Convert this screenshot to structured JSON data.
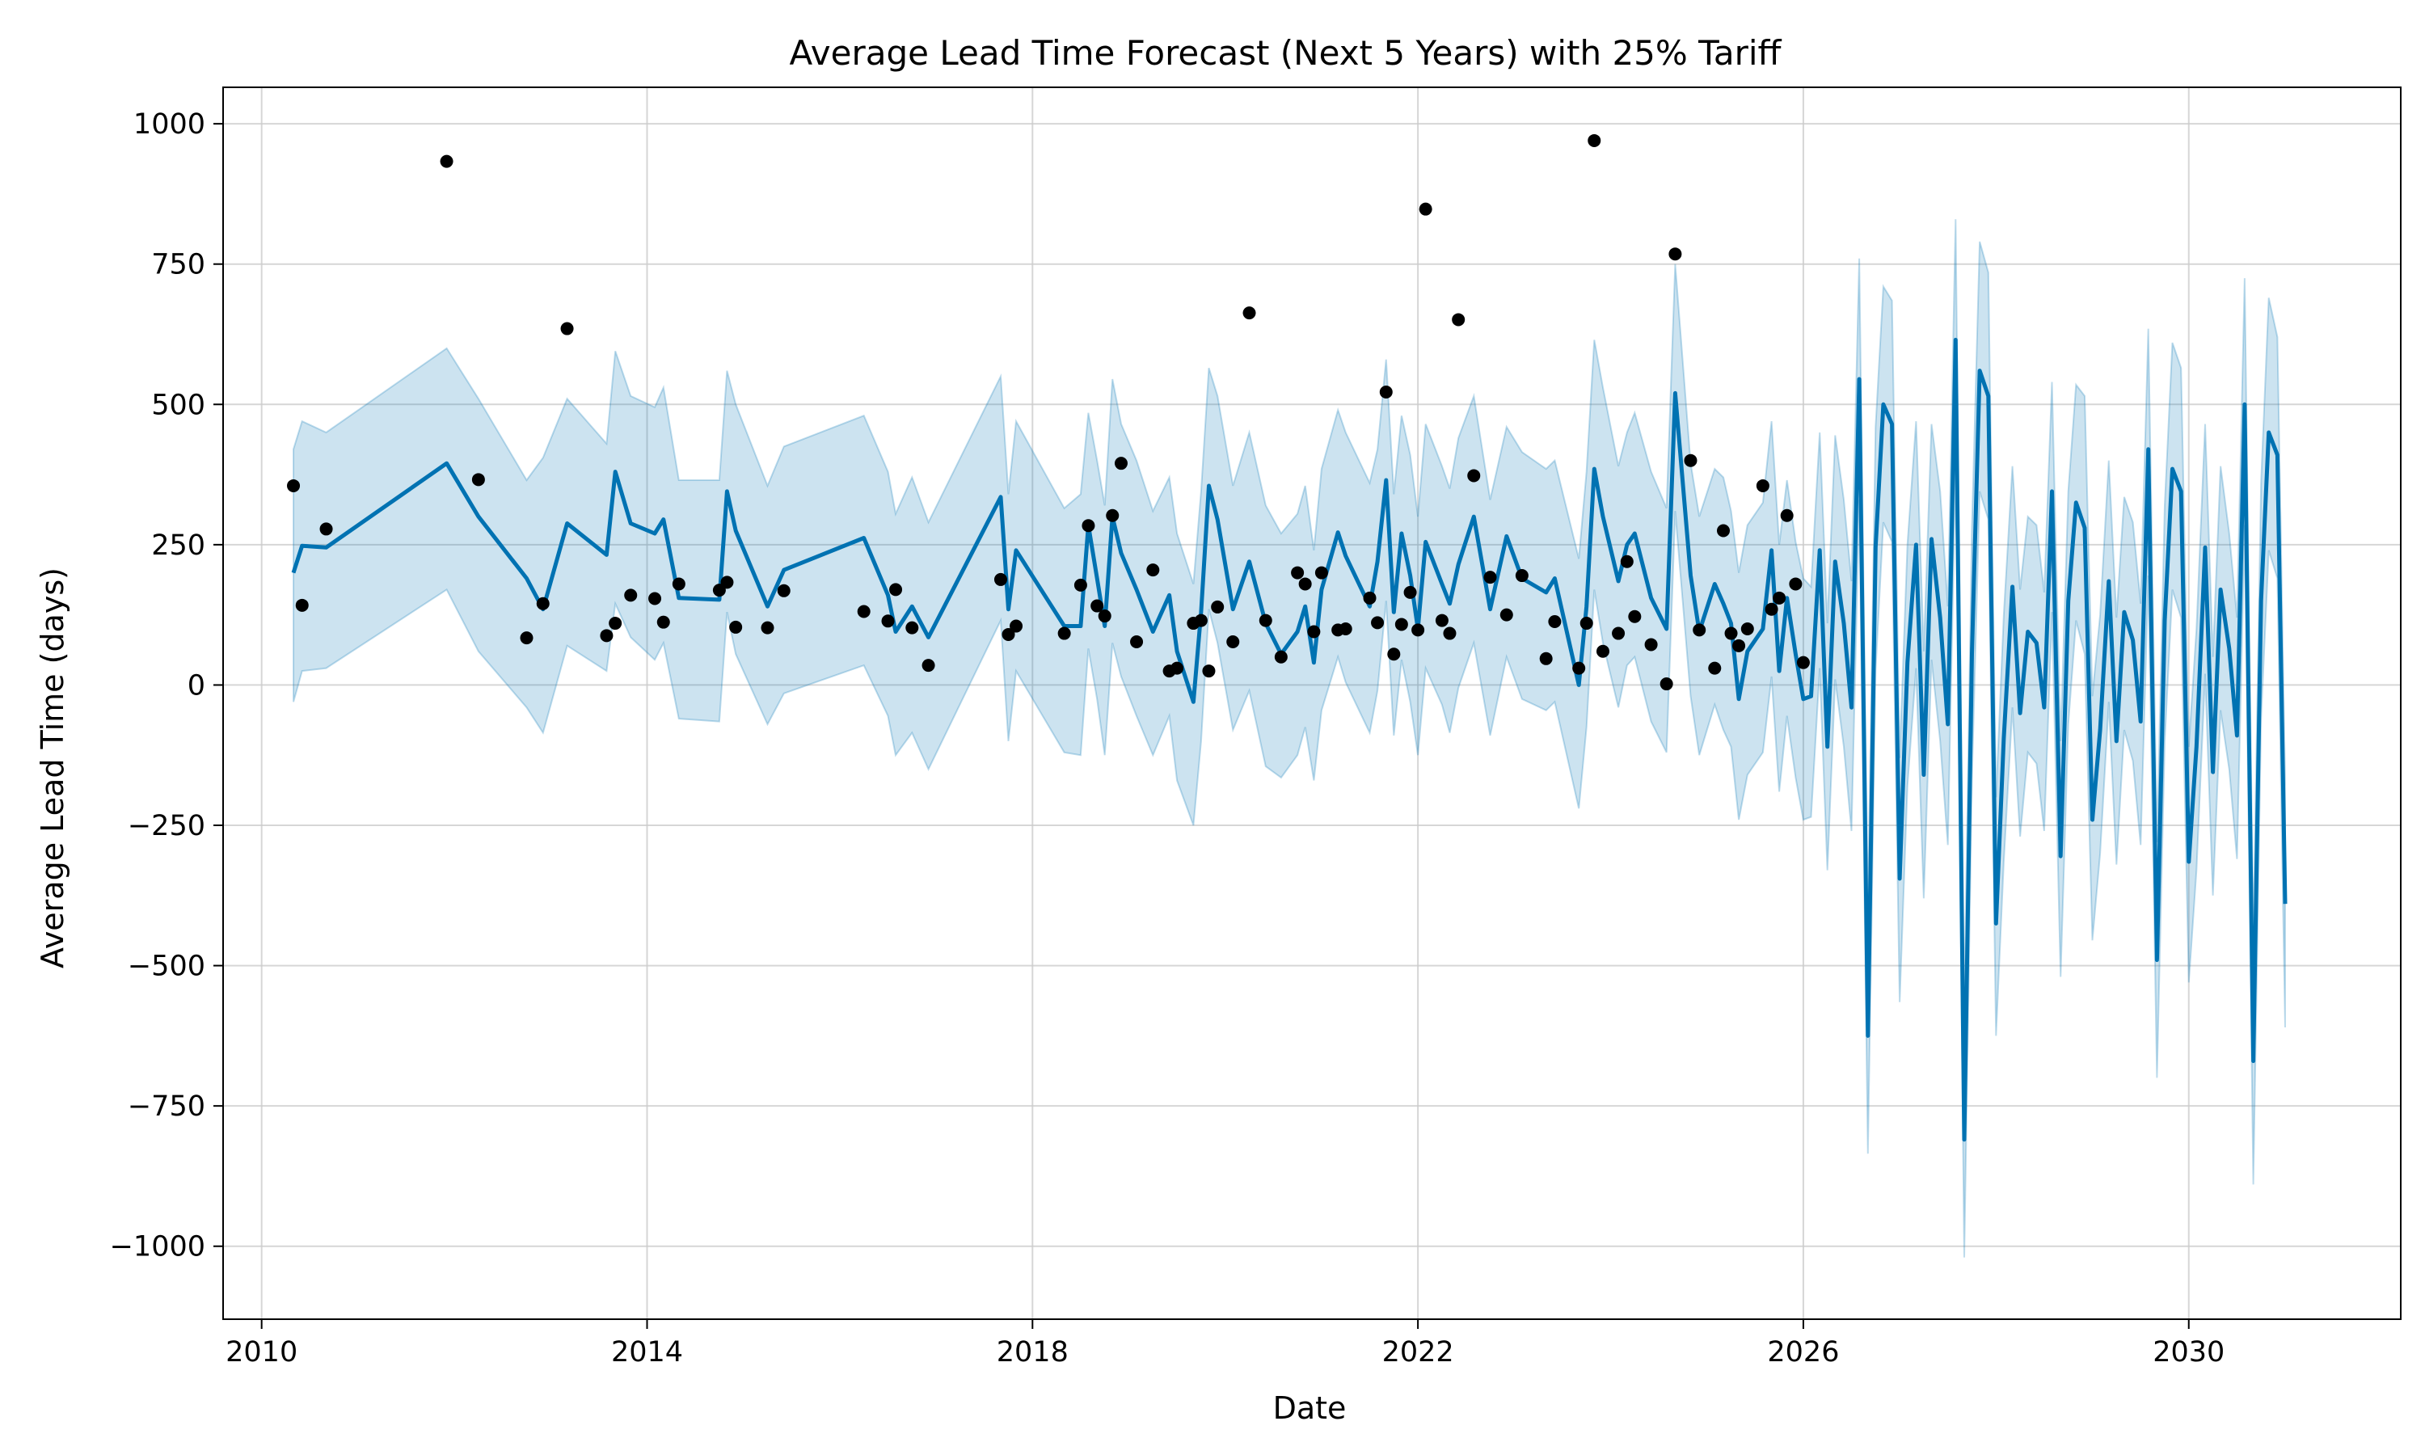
{
  "chart_data": {
    "type": "line",
    "title": "Average Lead Time Forecast (Next 5 Years) with 25% Tariff",
    "xlabel": "Date",
    "ylabel": "Average Lead Time (days)",
    "xlim": [
      2009.6,
      2032.2
    ],
    "ylim": [
      -1130,
      1065
    ],
    "x_ticks": [
      2010,
      2014,
      2018,
      2022,
      2026,
      2030
    ],
    "x_tick_labels": [
      "2010",
      "2014",
      "2018",
      "2022",
      "2026",
      "2030"
    ],
    "y_ticks": [
      -1000,
      -750,
      -500,
      -250,
      0,
      250,
      500,
      750,
      1000
    ],
    "y_tick_labels": [
      "−1000",
      "−750",
      "−500",
      "−250",
      "0",
      "250",
      "500",
      "750",
      "1000"
    ],
    "grid": true,
    "legend": "none",
    "colors": {
      "forecast": "#0072B2",
      "interval": "#0072B2",
      "actual": "#000000",
      "grid": "#cccccc"
    },
    "actual": {
      "x": [
        2010.33,
        2010.42,
        2010.67,
        2011.92,
        2012.25,
        2012.75,
        2012.92,
        2013.17,
        2013.58,
        2013.67,
        2013.83,
        2014.08,
        2014.17,
        2014.33,
        2014.75,
        2014.83,
        2014.92,
        2015.25,
        2015.42,
        2016.25,
        2016.5,
        2016.58,
        2016.75,
        2016.92,
        2017.67,
        2017.75,
        2017.83,
        2018.33,
        2018.5,
        2018.58,
        2018.67,
        2018.75,
        2018.83,
        2018.92,
        2019.08,
        2019.25,
        2019.42,
        2019.5,
        2019.67,
        2019.75,
        2019.83,
        2019.92,
        2020.08,
        2020.25,
        2020.42,
        2020.58,
        2020.75,
        2020.83,
        2020.92,
        2021.0,
        2021.17,
        2021.25,
        2021.5,
        2021.58,
        2021.67,
        2021.75,
        2021.83,
        2021.92,
        2022.0,
        2022.08,
        2022.25,
        2022.33,
        2022.42,
        2022.58,
        2022.75,
        2022.92,
        2023.08,
        2023.33,
        2023.42,
        2023.67,
        2023.75,
        2023.83,
        2023.92,
        2024.08,
        2024.17,
        2024.25,
        2024.42,
        2024.58,
        2024.67,
        2024.83,
        2024.92,
        2025.08,
        2025.17,
        2025.25,
        2025.33,
        2025.42,
        2025.58,
        2025.67,
        2025.75,
        2025.83,
        2025.92,
        2026.0
      ],
      "y": [
        355,
        142,
        278,
        933,
        366,
        84,
        145,
        635,
        88,
        110,
        160,
        154,
        112,
        180,
        169,
        183,
        103,
        102,
        168,
        131,
        114,
        170,
        102,
        35,
        188,
        90,
        105,
        92,
        178,
        284,
        141,
        123,
        302,
        395,
        77,
        205,
        25,
        30,
        110,
        115,
        25,
        139,
        77,
        663,
        115,
        50,
        200,
        180,
        95,
        200,
        98,
        100,
        155,
        111,
        522,
        55,
        108,
        165,
        98,
        848,
        115,
        92,
        651,
        373,
        192,
        125,
        195,
        47,
        113,
        30,
        110,
        970,
        60,
        92,
        220,
        122,
        72,
        2,
        768,
        400,
        98,
        30,
        275,
        92,
        70,
        100,
        355,
        135,
        155,
        302,
        180,
        40
      ]
    },
    "series": [
      {
        "x": [
          2010.33,
          2010.42,
          2010.67,
          2011.92,
          2012.25,
          2012.75,
          2012.92,
          2013.17,
          2013.58,
          2013.67,
          2013.83,
          2014.08,
          2014.17,
          2014.33,
          2014.75,
          2014.83,
          2014.92,
          2015.25,
          2015.42,
          2016.25,
          2016.5,
          2016.58,
          2016.75,
          2016.92,
          2017.67,
          2017.75,
          2017.83,
          2018.33,
          2018.5,
          2018.58,
          2018.67,
          2018.75,
          2018.83,
          2018.92,
          2019.08,
          2019.25,
          2019.42,
          2019.5,
          2019.67,
          2019.75,
          2019.83,
          2019.92,
          2020.08,
          2020.25,
          2020.42,
          2020.58,
          2020.75,
          2020.83,
          2020.92,
          2021.0,
          2021.17,
          2021.25,
          2021.5,
          2021.58,
          2021.67,
          2021.75,
          2021.83,
          2021.92,
          2022.0,
          2022.08,
          2022.25,
          2022.33,
          2022.42,
          2022.58,
          2022.75,
          2022.92,
          2023.08,
          2023.33,
          2023.42,
          2023.67,
          2023.75,
          2023.83,
          2023.92,
          2024.08,
          2024.17,
          2024.25,
          2024.42,
          2024.58,
          2024.67,
          2024.83,
          2024.92,
          2025.08,
          2025.17,
          2025.25,
          2025.33,
          2025.42,
          2025.58,
          2025.67,
          2025.75,
          2025.83,
          2025.92,
          2026.0,
          2026.08,
          2026.17,
          2026.25,
          2026.33,
          2026.42,
          2026.5,
          2026.58,
          2026.67,
          2026.75,
          2026.83,
          2026.92,
          2027.0,
          2027.08,
          2027.17,
          2027.25,
          2027.33,
          2027.42,
          2027.5,
          2027.58,
          2027.67,
          2027.75,
          2027.83,
          2027.92,
          2028.0,
          2028.08,
          2028.17,
          2028.25,
          2028.33,
          2028.42,
          2028.5,
          2028.58,
          2028.67,
          2028.75,
          2028.83,
          2028.92,
          2029.0,
          2029.08,
          2029.17,
          2029.25,
          2029.33,
          2029.42,
          2029.5,
          2029.58,
          2029.67,
          2029.75,
          2029.83,
          2029.92,
          2030.0,
          2030.08,
          2030.17,
          2030.25,
          2030.33,
          2030.42,
          2030.5,
          2030.58,
          2030.67,
          2030.75,
          2030.83,
          2030.92,
          2031.0
        ],
        "y": [
          200,
          248,
          245,
          395,
          300,
          190,
          135,
          288,
          232,
          380,
          288,
          270,
          295,
          155,
          152,
          345,
          275,
          140,
          205,
          262,
          160,
          95,
          140,
          85,
          335,
          135,
          240,
          105,
          105,
          285,
          190,
          105,
          300,
          235,
          170,
          95,
          160,
          60,
          -30,
          130,
          355,
          295,
          135,
          220,
          110,
          55,
          95,
          140,
          40,
          170,
          272,
          230,
          140,
          220,
          365,
          130,
          270,
          195,
          100,
          255,
          180,
          145,
          215,
          300,
          135,
          265,
          190,
          165,
          190,
          0,
          140,
          385,
          300,
          185,
          250,
          270,
          155,
          100,
          520,
          195,
          95,
          180,
          145,
          110,
          -25,
          60,
          100,
          240,
          25,
          155,
          55,
          -25,
          -20,
          240,
          -110,
          220,
          110,
          -40,
          545,
          -625,
          245,
          500,
          465,
          -345,
          40,
          250,
          -160,
          260,
          120,
          -70,
          615,
          -810,
          55,
          560,
          515,
          -425,
          -95,
          175,
          -50,
          95,
          75,
          -40,
          345,
          -305,
          150,
          325,
          280,
          -240,
          -80,
          185,
          -100,
          130,
          80,
          -65,
          420,
          -490,
          115,
          385,
          345,
          -315,
          -110,
          245,
          -155,
          170,
          65,
          -90,
          500,
          -670,
          150,
          450,
          410,
          -390
        ]
      }
    ],
    "interval": {
      "x": [
        2010.33,
        2010.42,
        2010.67,
        2011.92,
        2012.25,
        2012.75,
        2012.92,
        2013.17,
        2013.58,
        2013.67,
        2013.83,
        2014.08,
        2014.17,
        2014.33,
        2014.75,
        2014.83,
        2014.92,
        2015.25,
        2015.42,
        2016.25,
        2016.5,
        2016.58,
        2016.75,
        2016.92,
        2017.67,
        2017.75,
        2017.83,
        2018.33,
        2018.5,
        2018.58,
        2018.67,
        2018.75,
        2018.83,
        2018.92,
        2019.08,
        2019.25,
        2019.42,
        2019.5,
        2019.67,
        2019.75,
        2019.83,
        2019.92,
        2020.08,
        2020.25,
        2020.42,
        2020.58,
        2020.75,
        2020.83,
        2020.92,
        2021.0,
        2021.17,
        2021.25,
        2021.5,
        2021.58,
        2021.67,
        2021.75,
        2021.83,
        2021.92,
        2022.0,
        2022.08,
        2022.25,
        2022.33,
        2022.42,
        2022.58,
        2022.75,
        2022.92,
        2023.08,
        2023.33,
        2023.42,
        2023.67,
        2023.75,
        2023.83,
        2023.92,
        2024.08,
        2024.17,
        2024.25,
        2024.42,
        2024.58,
        2024.67,
        2024.83,
        2024.92,
        2025.08,
        2025.17,
        2025.25,
        2025.33,
        2025.42,
        2025.58,
        2025.67,
        2025.75,
        2025.83,
        2025.92,
        2026.0,
        2026.08,
        2026.17,
        2026.25,
        2026.33,
        2026.42,
        2026.5,
        2026.58,
        2026.67,
        2026.75,
        2026.83,
        2026.92,
        2027.0,
        2027.08,
        2027.17,
        2027.25,
        2027.33,
        2027.42,
        2027.5,
        2027.58,
        2027.67,
        2027.75,
        2027.83,
        2027.92,
        2028.0,
        2028.08,
        2028.17,
        2028.25,
        2028.33,
        2028.42,
        2028.5,
        2028.58,
        2028.67,
        2028.75,
        2028.83,
        2028.92,
        2029.0,
        2029.08,
        2029.17,
        2029.25,
        2029.33,
        2029.42,
        2029.5,
        2029.58,
        2029.67,
        2029.75,
        2029.83,
        2029.92,
        2030.0,
        2030.08,
        2030.17,
        2030.25,
        2030.33,
        2030.42,
        2030.5,
        2030.58,
        2030.67,
        2030.75,
        2030.83,
        2030.92,
        2031.0
      ],
      "upper": [
        420,
        470,
        450,
        600,
        510,
        365,
        405,
        510,
        430,
        595,
        515,
        495,
        530,
        365,
        365,
        560,
        500,
        355,
        425,
        480,
        380,
        305,
        370,
        290,
        550,
        340,
        470,
        315,
        340,
        485,
        400,
        320,
        545,
        465,
        400,
        310,
        370,
        270,
        180,
        345,
        565,
        515,
        355,
        450,
        320,
        270,
        305,
        355,
        240,
        385,
        490,
        450,
        360,
        420,
        580,
        340,
        480,
        410,
        300,
        465,
        390,
        350,
        440,
        515,
        330,
        460,
        415,
        385,
        400,
        225,
        380,
        615,
        530,
        390,
        450,
        485,
        380,
        315,
        750,
        395,
        300,
        385,
        370,
        310,
        200,
        285,
        325,
        470,
        250,
        365,
        255,
        190,
        175,
        450,
        110,
        445,
        330,
        185,
        760,
        -400,
        460,
        710,
        685,
        -130,
        250,
        470,
        60,
        465,
        345,
        140,
        830,
        -575,
        280,
        790,
        735,
        -200,
        125,
        390,
        170,
        300,
        285,
        165,
        540,
        -100,
        345,
        535,
        515,
        -20,
        125,
        400,
        120,
        335,
        290,
        145,
        635,
        -280,
        320,
        610,
        565,
        -110,
        100,
        465,
        50,
        390,
        270,
        120,
        725,
        -450,
        360,
        690,
        620,
        -175
      ],
      "lower": [
        -30,
        25,
        30,
        170,
        60,
        -40,
        -85,
        70,
        25,
        145,
        85,
        45,
        75,
        -60,
        -65,
        130,
        55,
        -70,
        -15,
        35,
        -55,
        -125,
        -85,
        -150,
        115,
        -100,
        25,
        -120,
        -125,
        65,
        -25,
        -125,
        75,
        15,
        -55,
        -125,
        -55,
        -170,
        -250,
        -100,
        135,
        75,
        -80,
        -10,
        -145,
        -165,
        -125,
        -75,
        -170,
        -45,
        50,
        5,
        -85,
        -10,
        150,
        -90,
        45,
        -30,
        -125,
        30,
        -35,
        -85,
        -5,
        75,
        -90,
        50,
        -25,
        -45,
        -30,
        -220,
        -75,
        170,
        75,
        -40,
        35,
        50,
        -65,
        -120,
        310,
        -20,
        -125,
        -35,
        -80,
        -110,
        -240,
        -160,
        -120,
        15,
        -190,
        -55,
        -165,
        -240,
        -235,
        30,
        -330,
        10,
        -110,
        -260,
        330,
        -835,
        25,
        290,
        255,
        -565,
        -180,
        30,
        -380,
        45,
        -100,
        -285,
        400,
        -1020,
        -170,
        345,
        295,
        -625,
        -315,
        -40,
        -270,
        -120,
        -140,
        -260,
        130,
        -520,
        -70,
        115,
        55,
        -455,
        -300,
        -30,
        -320,
        -80,
        -135,
        -285,
        195,
        -700,
        -100,
        170,
        120,
        -530,
        -330,
        20,
        -375,
        -45,
        -150,
        -310,
        285,
        -890,
        -60,
        240,
        190,
        -610
      ]
    }
  }
}
